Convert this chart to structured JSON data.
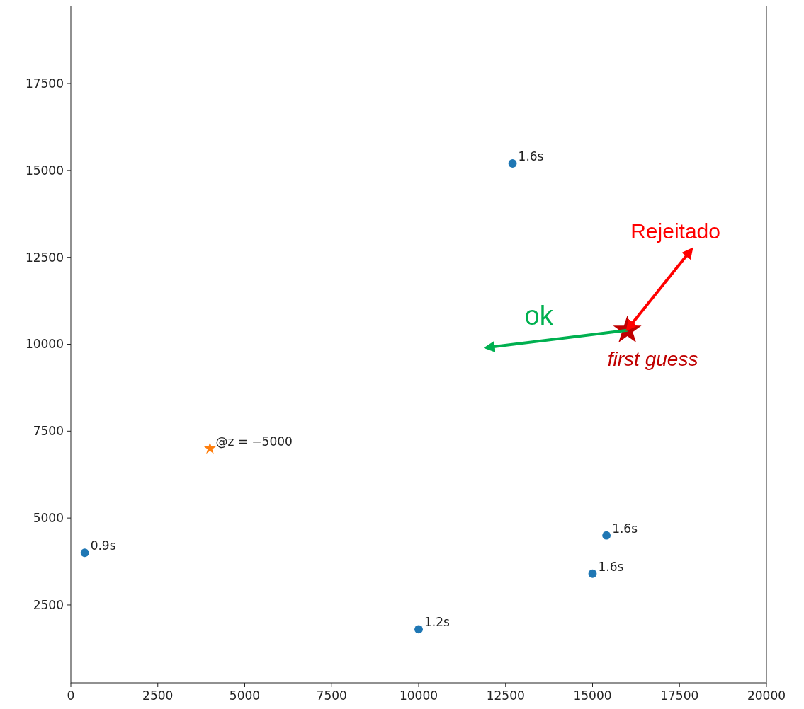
{
  "chart_data": {
    "type": "scatter",
    "xlim": [
      0,
      20000
    ],
    "ylim": [
      260,
      19740
    ],
    "xticks": [
      0,
      2500,
      5000,
      7500,
      10000,
      12500,
      15000,
      17500,
      20000
    ],
    "yticks": [
      2500,
      5000,
      7500,
      10000,
      12500,
      15000,
      17500
    ],
    "series": [
      {
        "color": "#1f77b4",
        "marker": "circle",
        "x": [
          400,
          10000,
          15000,
          15400,
          12700
        ],
        "values": [
          4000,
          1800,
          3400,
          4500,
          15200
        ]
      },
      {
        "color": "#ff7f0e",
        "marker": "star",
        "x": [
          4000
        ],
        "values": [
          7000
        ]
      },
      {
        "color": "#c00000",
        "marker": "star",
        "x": [
          16000
        ],
        "values": [
          10400
        ]
      }
    ],
    "annotations": [
      {
        "text": "0.9s",
        "x": 400,
        "y": 4000
      },
      {
        "text": "1.2s",
        "x": 10000,
        "y": 1800
      },
      {
        "text": "1.6s",
        "x": 15000,
        "y": 3400
      },
      {
        "text": "1.6s",
        "x": 15400,
        "y": 4500
      },
      {
        "text": "1.6s",
        "x": 12700,
        "y": 15200
      },
      {
        "text": "@z = −5000",
        "x": 4000,
        "y": 7000
      },
      {
        "text": "first guess",
        "x": 16000,
        "y": 10400
      },
      "ok",
      "Rejeitado"
    ]
  }
}
